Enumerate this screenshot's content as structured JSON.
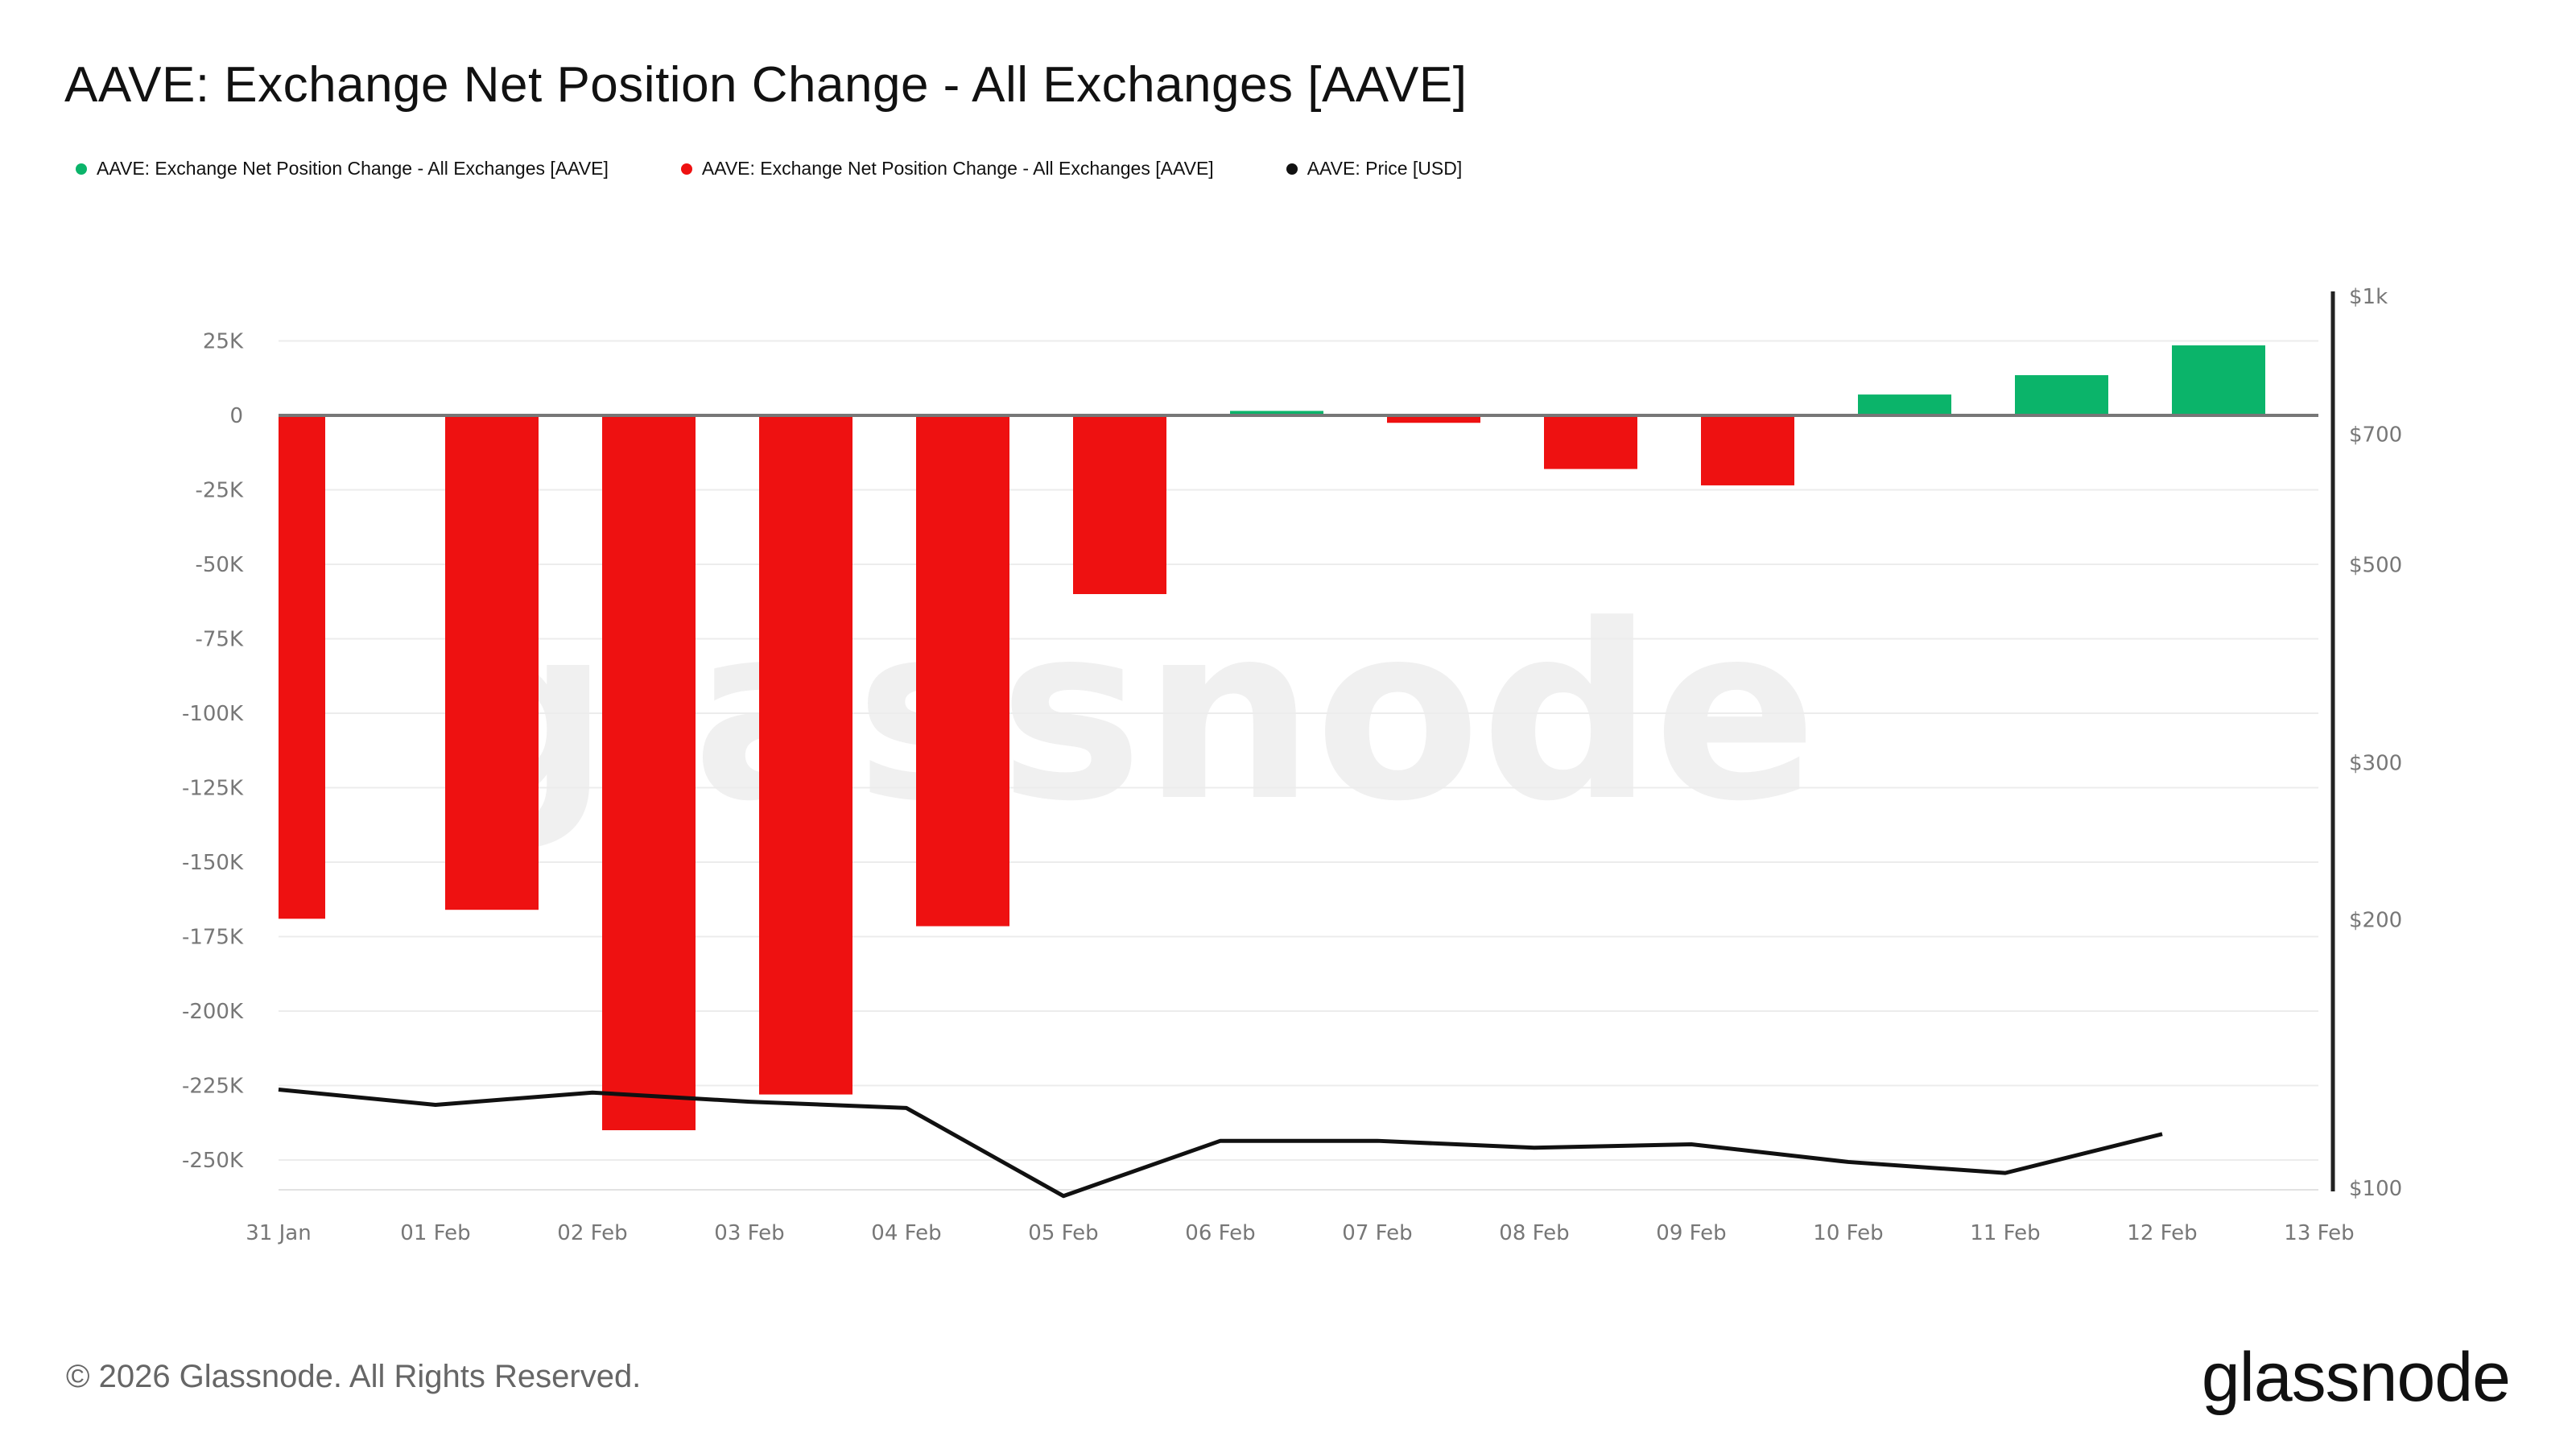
{
  "header": {
    "title": "AAVE: Exchange Net Position Change - All Exchanges [AAVE]"
  },
  "legend": [
    {
      "label": "AAVE: Exchange Net Position Change - All Exchanges [AAVE]",
      "color": "#0bb46a"
    },
    {
      "label": "AAVE: Exchange Net Position Change - All Exchanges [AAVE]",
      "color": "#ee1111"
    },
    {
      "label": "AAVE: Price [USD]",
      "color": "#111111"
    }
  ],
  "watermark": "glassnode",
  "footer": {
    "copyright": "© 2026 Glassnode. All Rights Reserved.",
    "brand": "glassnode"
  },
  "chart_data": {
    "type": "bar",
    "title": "AAVE: Exchange Net Position Change - All Exchanges [AAVE]",
    "categories": [
      "31 Jan",
      "01 Feb",
      "02 Feb",
      "03 Feb",
      "04 Feb",
      "05 Feb",
      "06 Feb",
      "07 Feb",
      "08 Feb",
      "09 Feb",
      "10 Feb",
      "11 Feb",
      "12 Feb"
    ],
    "x_ticks": [
      "31 Jan",
      "01 Feb",
      "02 Feb",
      "03 Feb",
      "04 Feb",
      "05 Feb",
      "06 Feb",
      "07 Feb",
      "08 Feb",
      "09 Feb",
      "10 Feb",
      "11 Feb",
      "12 Feb",
      "13 Feb"
    ],
    "net_position_change": [
      -169000,
      -166000,
      -240000,
      -228000,
      -171500,
      -60000,
      1500,
      -2500,
      -18000,
      -23500,
      7000,
      13500,
      23500
    ],
    "price": [
      129,
      124,
      128,
      125,
      123,
      98,
      113,
      113,
      111,
      112,
      107,
      104,
      115
    ],
    "positive_color": "#0bb46a",
    "negative_color": "#ee1111",
    "price_color": "#111111",
    "y_left": {
      "ylim": [
        -260000,
        25000
      ],
      "ticks": [
        25000,
        0,
        -25000,
        -50000,
        -75000,
        -100000,
        -125000,
        -150000,
        -175000,
        -200000,
        -225000,
        -250000
      ],
      "tick_labels": [
        "25K",
        "0",
        "-25K",
        "-50K",
        "-75K",
        "-100K",
        "-125K",
        "-150K",
        "-175K",
        "-200K",
        "-225K",
        "-250K"
      ]
    },
    "y_right": {
      "scale": "log",
      "ylim": [
        100,
        1000
      ],
      "ticks": [
        1000,
        700,
        500,
        300,
        200,
        100
      ],
      "tick_labels": [
        "$1k",
        "$700",
        "$500",
        "$300",
        "$200",
        "$100"
      ]
    },
    "grid": true,
    "legend_position": "top-left"
  }
}
